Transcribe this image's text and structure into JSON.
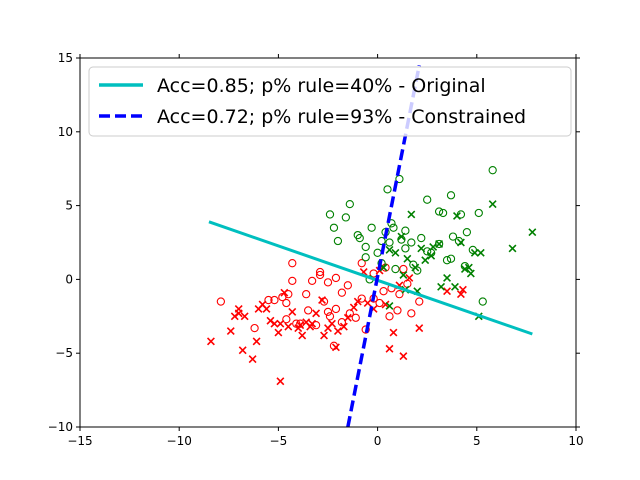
{
  "chart_data": {
    "type": "scatter",
    "xlim": [
      -15,
      10
    ],
    "ylim": [
      -10,
      15
    ],
    "x_ticks": [
      -15,
      -10,
      -5,
      0,
      5,
      10
    ],
    "y_ticks": [
      -10,
      -5,
      0,
      5,
      10,
      15
    ],
    "x_tick_labels": [
      "−15",
      "−10",
      "−5",
      "0",
      "5",
      "10"
    ],
    "y_tick_labels": [
      "−10",
      "−5",
      "0",
      "5",
      "10",
      "15"
    ],
    "grid": false,
    "legend_position": "top",
    "colors": {
      "red": "#ff0000",
      "green": "#008000",
      "cyan": "#00bfbf",
      "blue": "#0000ff"
    },
    "series": [
      {
        "marker": "o",
        "filled": false,
        "color": "#ff0000",
        "points": [
          [
            -7.9,
            -1.5
          ],
          [
            -6.2,
            -3.3
          ],
          [
            -5.5,
            -1.4
          ],
          [
            -5.2,
            -1.4
          ],
          [
            -4.8,
            -1.2
          ],
          [
            -4.6,
            -1.6
          ],
          [
            -4.6,
            -2.7
          ],
          [
            -4.5,
            -1.0
          ],
          [
            -4.3,
            -0.1
          ],
          [
            -4.3,
            1.1
          ],
          [
            -4.1,
            -3.0
          ],
          [
            -3.9,
            -3.0
          ],
          [
            -3.6,
            -1.0
          ],
          [
            -3.5,
            -2.1
          ],
          [
            -3.3,
            -0.1
          ],
          [
            -3.1,
            -3.1
          ],
          [
            -2.9,
            0.5
          ],
          [
            -2.9,
            0.3
          ],
          [
            -2.7,
            -1.5
          ],
          [
            -2.5,
            -0.2
          ],
          [
            -2.5,
            -2.2
          ],
          [
            -2.4,
            -2.5
          ],
          [
            -2.2,
            -4.5
          ],
          [
            -2.1,
            -2.0
          ],
          [
            -2.1,
            0.1
          ],
          [
            -1.8,
            -0.9
          ],
          [
            -1.8,
            -2.9
          ],
          [
            -1.5,
            -0.4
          ],
          [
            -1.4,
            -2.3
          ],
          [
            -1.1,
            -2.6
          ],
          [
            -0.8,
            1.1
          ],
          [
            -0.8,
            -1.3
          ],
          [
            -0.6,
            -3.4
          ],
          [
            -0.2,
            0.4
          ],
          [
            -0.2,
            -1.3
          ],
          [
            0.1,
            -1.6
          ],
          [
            0.3,
            -0.8
          ],
          [
            0.4,
            0.8
          ],
          [
            0.6,
            -2.5
          ],
          [
            0.7,
            -0.6
          ],
          [
            1.0,
            -2.1
          ],
          [
            1.1,
            -1.0
          ],
          [
            1.3,
            0.7
          ],
          [
            1.5,
            -0.3
          ],
          [
            1.7,
            -2.3
          ],
          [
            2.1,
            -1.5
          ]
        ]
      },
      {
        "marker": "x",
        "filled": false,
        "color": "#ff0000",
        "points": [
          [
            -8.4,
            -4.2
          ],
          [
            -7.4,
            -3.5
          ],
          [
            -7.2,
            -2.5
          ],
          [
            -7.0,
            -2.0
          ],
          [
            -7.0,
            -2.3
          ],
          [
            -6.8,
            -4.8
          ],
          [
            -6.7,
            -2.5
          ],
          [
            -6.3,
            -5.4
          ],
          [
            -6.1,
            -4.2
          ],
          [
            -6.0,
            -2.0
          ],
          [
            -5.8,
            -1.7
          ],
          [
            -5.6,
            -2.0
          ],
          [
            -5.4,
            -2.8
          ],
          [
            -5.2,
            -3.0
          ],
          [
            -5.0,
            -3.6
          ],
          [
            -4.9,
            -6.9
          ],
          [
            -4.9,
            -3.0
          ],
          [
            -4.7,
            -0.9
          ],
          [
            -4.5,
            -3.2
          ],
          [
            -4.3,
            -2.2
          ],
          [
            -4.0,
            -3.3
          ],
          [
            -3.9,
            -3.1
          ],
          [
            -3.8,
            -3.8
          ],
          [
            -3.6,
            -2.9
          ],
          [
            -3.4,
            -3.2
          ],
          [
            -3.3,
            -3.0
          ],
          [
            -3.1,
            -2.3
          ],
          [
            -2.8,
            -1.4
          ],
          [
            -2.7,
            -3.8
          ],
          [
            -2.5,
            -3.3
          ],
          [
            -2.3,
            -3.0
          ],
          [
            -2.1,
            -4.6
          ],
          [
            -2.0,
            -3.5
          ],
          [
            -1.7,
            -3.2
          ],
          [
            -1.5,
            -2.6
          ],
          [
            -1.2,
            -1.9
          ],
          [
            -1.0,
            -1.5
          ],
          [
            -0.7,
            0.5
          ],
          [
            -0.5,
            -1.6
          ],
          [
            -0.2,
            -2.0
          ],
          [
            0.1,
            0.6
          ],
          [
            0.4,
            -1.7
          ],
          [
            0.6,
            -4.7
          ],
          [
            0.8,
            -3.6
          ],
          [
            1.1,
            -0.4
          ],
          [
            1.3,
            -5.2
          ],
          [
            1.6,
            0.1
          ],
          [
            2.1,
            -3.3
          ],
          [
            3.5,
            -0.8
          ],
          [
            4.2,
            -1.0
          ],
          [
            4.3,
            -0.7
          ]
        ]
      },
      {
        "marker": "o",
        "filled": false,
        "color": "#008000",
        "points": [
          [
            -2.4,
            4.4
          ],
          [
            -2.2,
            3.5
          ],
          [
            -2.0,
            2.6
          ],
          [
            -1.6,
            4.2
          ],
          [
            -1.4,
            5.1
          ],
          [
            -1.0,
            3.0
          ],
          [
            -0.9,
            2.8
          ],
          [
            -0.6,
            1.5
          ],
          [
            -0.6,
            2.2
          ],
          [
            -0.4,
            0.0
          ],
          [
            -0.3,
            3.5
          ],
          [
            0.0,
            1.8
          ],
          [
            0.2,
            2.6
          ],
          [
            0.4,
            3.2
          ],
          [
            0.5,
            6.1
          ],
          [
            0.6,
            2.5
          ],
          [
            0.7,
            3.8
          ],
          [
            0.8,
            3.5
          ],
          [
            0.9,
            0.7
          ],
          [
            1.1,
            6.8
          ],
          [
            1.2,
            2.7
          ],
          [
            1.4,
            2.1
          ],
          [
            1.4,
            3.3
          ],
          [
            1.7,
            2.5
          ],
          [
            1.8,
            1.0
          ],
          [
            2.0,
            0.6
          ],
          [
            2.2,
            2.8
          ],
          [
            2.5,
            1.9
          ],
          [
            2.5,
            5.4
          ],
          [
            2.7,
            1.8
          ],
          [
            3.1,
            2.4
          ],
          [
            3.1,
            4.6
          ],
          [
            3.5,
            1.3
          ],
          [
            3.7,
            1.4
          ],
          [
            3.7,
            5.7
          ],
          [
            3.8,
            2.9
          ],
          [
            4.1,
            2.6
          ],
          [
            4.2,
            4.4
          ],
          [
            4.4,
            0.9
          ],
          [
            4.5,
            3.2
          ],
          [
            4.8,
            2.0
          ],
          [
            5.1,
            4.5
          ],
          [
            5.3,
            -1.5
          ],
          [
            5.8,
            7.4
          ],
          [
            3.3,
            4.5
          ],
          [
            0.2,
            1.1
          ]
        ]
      },
      {
        "marker": "x",
        "filled": false,
        "color": "#008000",
        "points": [
          [
            0.3,
            0.8
          ],
          [
            0.6,
            2.0
          ],
          [
            0.9,
            1.8
          ],
          [
            1.2,
            2.9
          ],
          [
            1.3,
            0.3
          ],
          [
            1.5,
            1.4
          ],
          [
            1.7,
            4.4
          ],
          [
            1.9,
            0.8
          ],
          [
            2.0,
            -0.8
          ],
          [
            2.2,
            2.1
          ],
          [
            2.4,
            1.3
          ],
          [
            2.7,
            1.6
          ],
          [
            2.8,
            2.2
          ],
          [
            3.1,
            2.4
          ],
          [
            3.2,
            -0.5
          ],
          [
            3.5,
            0.1
          ],
          [
            3.9,
            -0.5
          ],
          [
            4.0,
            4.3
          ],
          [
            4.2,
            2.5
          ],
          [
            4.4,
            0.7
          ],
          [
            4.6,
            0.8
          ],
          [
            4.7,
            0.4
          ],
          [
            4.9,
            1.8
          ],
          [
            5.1,
            -2.5
          ],
          [
            5.2,
            1.8
          ],
          [
            5.8,
            5.1
          ],
          [
            6.8,
            2.1
          ],
          [
            7.8,
            3.2
          ],
          [
            0.6,
            -1.8
          ],
          [
            1.4,
            -0.7
          ]
        ]
      }
    ],
    "lines": [
      {
        "style": "solid",
        "color": "#00bfbf",
        "width": 3,
        "points": [
          [
            -8.5,
            3.9
          ],
          [
            7.8,
            -3.7
          ]
        ]
      },
      {
        "style": "dashed",
        "color": "#0000ff",
        "width": 3.5,
        "points": [
          [
            -1.5,
            -10.0
          ],
          [
            2.1,
            14.5
          ]
        ]
      }
    ],
    "legend": [
      {
        "label": "Acc=0.85; p% rule=40% - Original",
        "style": "solid",
        "color": "#00bfbf"
      },
      {
        "label": "Acc=0.72; p% rule=93% - Constrained",
        "style": "dashed",
        "color": "#0000ff"
      }
    ]
  }
}
